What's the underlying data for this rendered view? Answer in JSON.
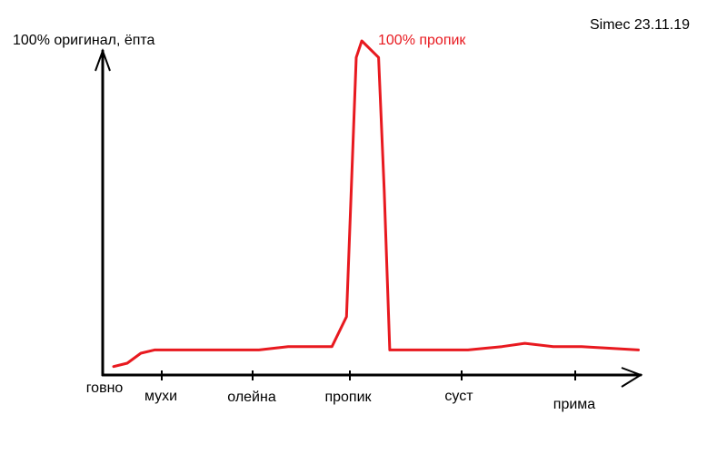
{
  "signature": "Simec 23.11.19",
  "chart_data": {
    "type": "line",
    "title": "",
    "ylabel": "100% оригинал, ёпта",
    "xlabel": "",
    "categories": [
      "говно",
      "мухи",
      "олейна",
      "пропик",
      "суст",
      "прима"
    ],
    "ylim": [
      0,
      100
    ],
    "grid": false,
    "line_color": "#e8191f",
    "series": [
      {
        "name": "",
        "x": [
          0,
          0.25,
          0.5,
          0.75,
          1,
          1.5,
          2,
          2.3,
          2.5,
          2.75,
          2.9,
          3.0,
          3.05,
          3.2,
          3.25,
          3.3,
          3.4,
          3.5,
          4.0,
          4.3,
          4.5,
          4.75,
          5.0,
          5.5
        ],
        "values": [
          2,
          3,
          6,
          7,
          7,
          7,
          7,
          8,
          8,
          8,
          17,
          95,
          100,
          95,
          55,
          7,
          7,
          7,
          7,
          8,
          9,
          8,
          8,
          7
        ]
      }
    ],
    "annotations": [
      {
        "text": "100% пропик",
        "at_category": "пропик",
        "y": 100
      }
    ]
  }
}
